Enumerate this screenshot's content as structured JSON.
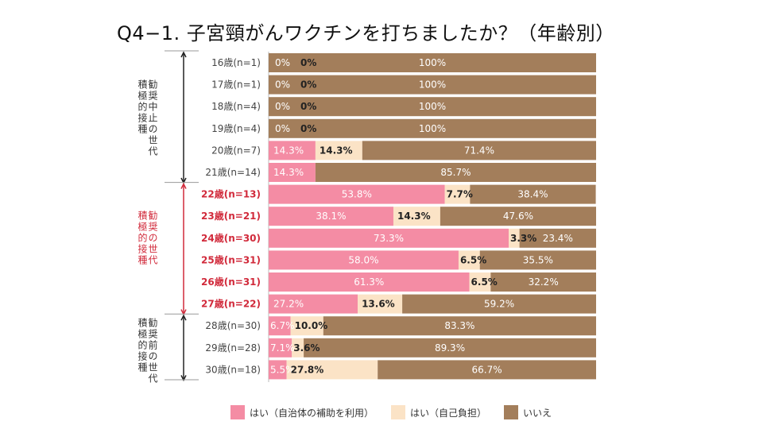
{
  "title": "Q4−1. 子宮頸がんワクチンを打ちましたか？（年齢別）",
  "colors": {
    "subsidized": "#f48ca4",
    "self": "#fbe3c6",
    "no": "#a37e5b",
    "emphasis_text": "#d12a3b",
    "normal_text": "#444444"
  },
  "groups": [
    {
      "label_lines": [
        "勧奨中止の世代",
        "積極的接種"
      ],
      "emphasis": false
    },
    {
      "label_lines": [
        "勧奨の世代",
        "積極的接種"
      ],
      "emphasis": true
    },
    {
      "label_lines": [
        "勧奨前の世代",
        "積極的接種"
      ],
      "emphasis": false
    }
  ],
  "chart_data": {
    "type": "bar",
    "stacked": true,
    "orientation": "horizontal",
    "title": "Q4−1. 子宮頸がんワクチンを打ちましたか？（年齢別）",
    "categories": [
      "16歳(n=1)",
      "17歳(n=1)",
      "18歳(n=4)",
      "19歳(n=4)",
      "20歳(n=7)",
      "21歳(n=14)",
      "22歳(n=13)",
      "23歳(n=21)",
      "24歳(n=30)",
      "25歳(n=31)",
      "26歳(n=31)",
      "27歳(n=22)",
      "28歳(n=30)",
      "29歳(n=28)",
      "30歳(n=18)"
    ],
    "category_group": [
      0,
      0,
      0,
      0,
      0,
      0,
      1,
      1,
      1,
      1,
      1,
      1,
      2,
      2,
      2
    ],
    "series": [
      {
        "name": "はい（自治体の補助を利用）",
        "values": [
          0,
          0,
          0,
          0,
          14.3,
          14.3,
          53.8,
          38.1,
          73.3,
          58.0,
          61.3,
          27.2,
          6.7,
          7.1,
          5.5
        ],
        "labels": [
          "0%",
          "0%",
          "0%",
          "0%",
          "14.3%",
          "14.3%",
          "53.8%",
          "38.1%",
          "73.3%",
          "58.0%",
          "61.3%",
          "27.2%",
          "6.7%",
          "7.1%",
          "5.5%"
        ]
      },
      {
        "name": "はい（自己負担）",
        "values": [
          0,
          0,
          0,
          0,
          14.3,
          0,
          7.7,
          14.3,
          3.3,
          6.5,
          6.5,
          13.6,
          10.0,
          3.6,
          27.8
        ],
        "labels": [
          "0%",
          "0%",
          "0%",
          "0%",
          "14.3%",
          "",
          "7.7%",
          "14.3%",
          "3.3%",
          "6.5%",
          "6.5%",
          "13.6%",
          "10.0%",
          "3.6%",
          "27.8%"
        ]
      },
      {
        "name": "いいえ",
        "values": [
          100,
          100,
          100,
          100,
          71.4,
          85.7,
          38.4,
          47.6,
          23.4,
          35.5,
          32.2,
          59.2,
          83.3,
          89.3,
          66.7
        ],
        "labels": [
          "100%",
          "100%",
          "100%",
          "100%",
          "71.4%",
          "85.7%",
          "38.4%",
          "47.6%",
          "23.4%",
          "35.5%",
          "32.2%",
          "59.2%",
          "83.3%",
          "89.3%",
          "66.7%"
        ]
      }
    ],
    "xlim": [
      0,
      100
    ],
    "legend_position": "bottom"
  }
}
